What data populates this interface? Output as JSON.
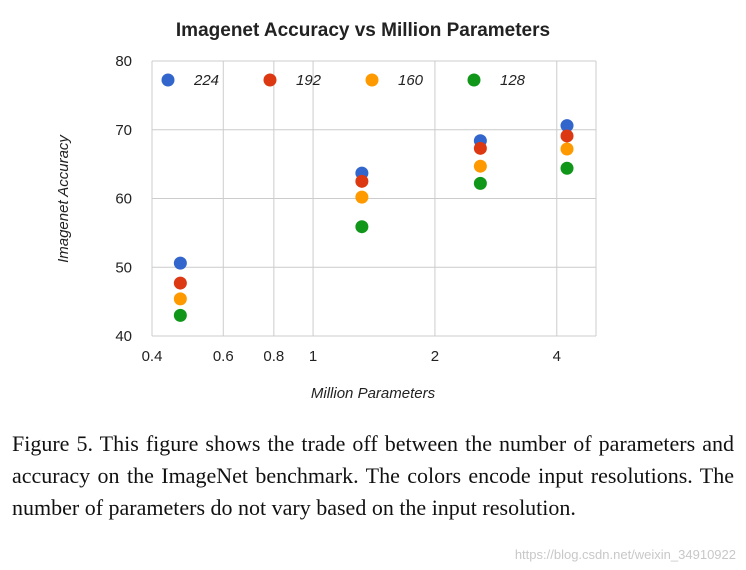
{
  "chart_data": {
    "type": "scatter",
    "title": "Imagenet Accuracy vs Million Parameters",
    "xlabel": "Million Parameters",
    "ylabel": "Imagenet Accuracy",
    "x_scale": "log",
    "xlim": [
      0.4,
      5.0
    ],
    "ylim": [
      40,
      80
    ],
    "x_ticks": [
      0.4,
      0.6,
      0.8,
      1,
      2,
      4
    ],
    "x_tick_labels": [
      "0.4",
      "0.6",
      "0.8",
      "1",
      "2",
      "4"
    ],
    "y_ticks": [
      40,
      50,
      60,
      70,
      80
    ],
    "y_tick_labels": [
      "40",
      "50",
      "60",
      "70",
      "80"
    ],
    "grid": true,
    "legend_position": "top",
    "series": [
      {
        "name": "224",
        "color": "#3366cc",
        "points": [
          [
            0.47,
            50.6
          ],
          [
            1.32,
            63.7
          ],
          [
            2.59,
            68.4
          ],
          [
            4.24,
            70.6
          ]
        ]
      },
      {
        "name": "192",
        "color": "#dc3912",
        "points": [
          [
            0.47,
            47.7
          ],
          [
            1.32,
            62.5
          ],
          [
            2.59,
            67.3
          ],
          [
            4.24,
            69.1
          ]
        ]
      },
      {
        "name": "160",
        "color": "#ff9900",
        "points": [
          [
            0.47,
            45.4
          ],
          [
            1.32,
            60.2
          ],
          [
            2.59,
            64.7
          ],
          [
            4.24,
            67.2
          ]
        ]
      },
      {
        "name": "128",
        "color": "#109618",
        "points": [
          [
            0.47,
            43.0
          ],
          [
            1.32,
            55.9
          ],
          [
            2.59,
            62.2
          ],
          [
            4.24,
            64.4
          ]
        ]
      }
    ]
  },
  "caption": "Figure 5. This figure shows the trade off between the number of parameters and accuracy on the ImageNet benchmark. The colors encode input resolutions. The number of parameters do not vary based on the input resolution.",
  "watermark": "https://blog.csdn.net/weixin_34910922"
}
